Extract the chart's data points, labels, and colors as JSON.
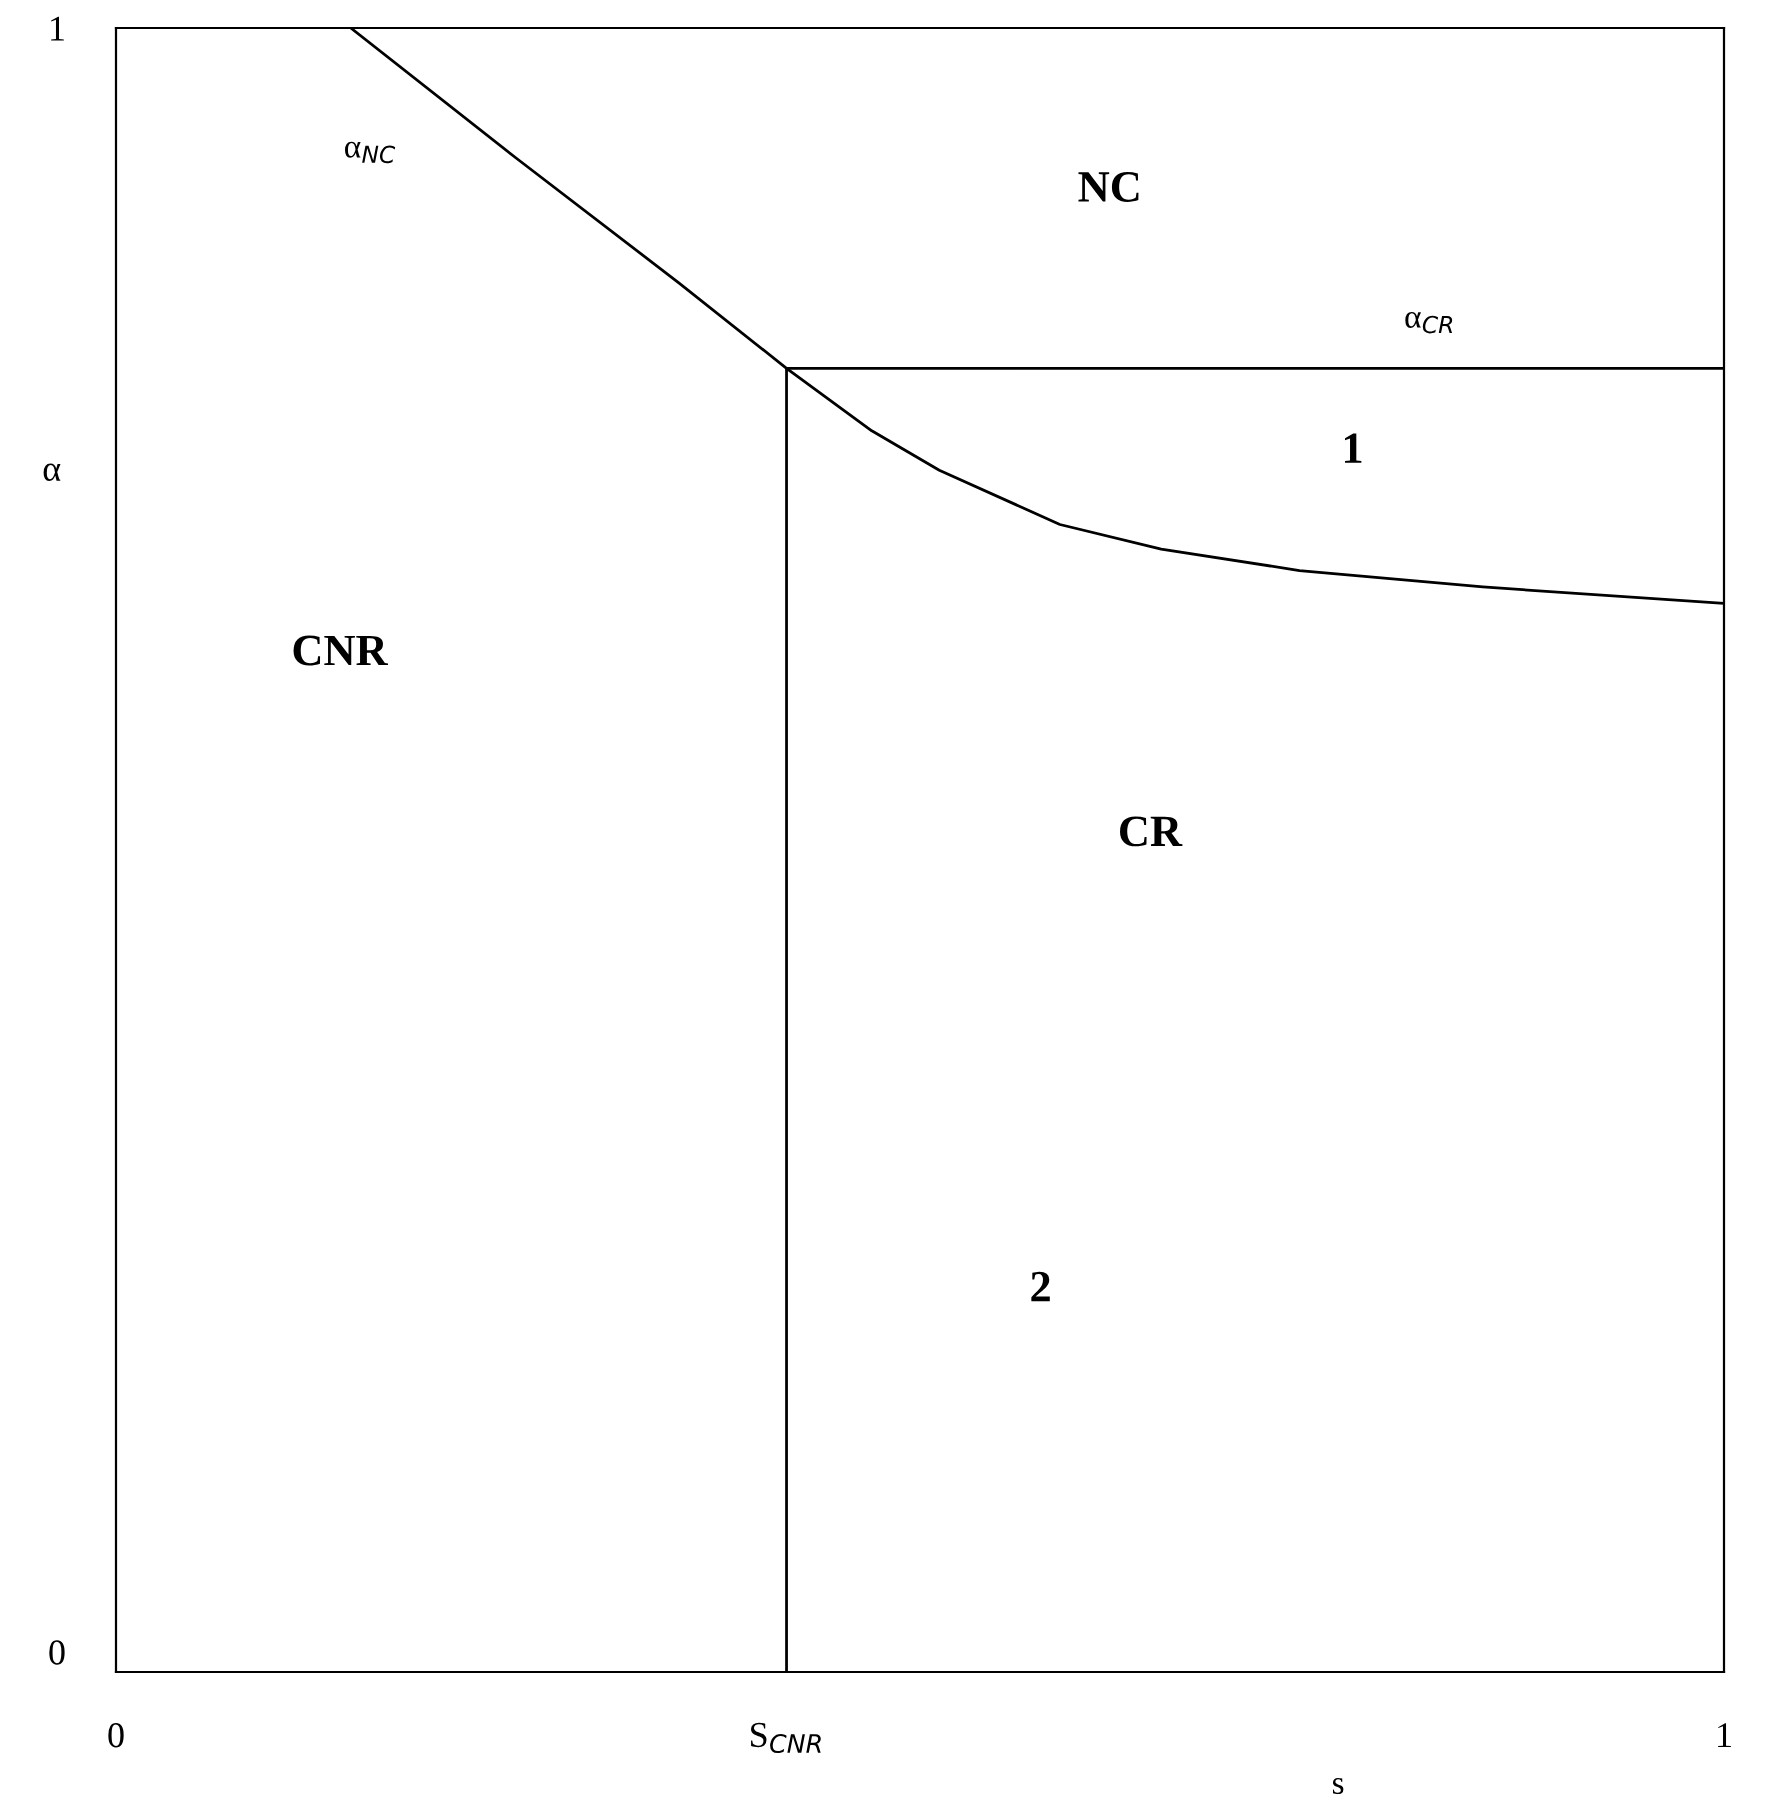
{
  "chart_data": {
    "type": "line",
    "xlabel": "s",
    "ylabel": "α",
    "xlim": [
      0,
      1
    ],
    "ylim": [
      0,
      1
    ],
    "xticks": [
      {
        "value": 0,
        "label": "0"
      },
      {
        "value": 0.417,
        "label": "S$_{CNR}$"
      },
      1
    ],
    "yticks": [
      {
        "value": 0,
        "label": "0"
      },
      1
    ],
    "grid": false,
    "series": [
      {
        "color": "#000000",
        "x": [
          0.146,
          0.25,
          0.35,
          0.417,
          0.47,
          0.512,
          0.587,
          0.65,
          0.736,
          0.85,
          1.0
        ],
        "values": [
          1.0,
          0.92,
          0.845,
          0.793,
          0.755,
          0.731,
          0.698,
          0.683,
          0.67,
          0.66,
          0.65
        ]
      },
      {
        "color": "#000000",
        "x": [
          0.417,
          1.0
        ],
        "values": [
          0.793,
          0.793
        ]
      }
    ],
    "ref_lines": [
      {
        "axis": "x",
        "value": 0.417,
        "color": "#000000"
      }
    ],
    "annotations": [
      "α$_{NC}$",
      {
        "text": "α$_{CR}$",
        "x": 0.817,
        "y": 0.793
      },
      "NC",
      "1",
      "CNR",
      "CR",
      "2"
    ]
  }
}
